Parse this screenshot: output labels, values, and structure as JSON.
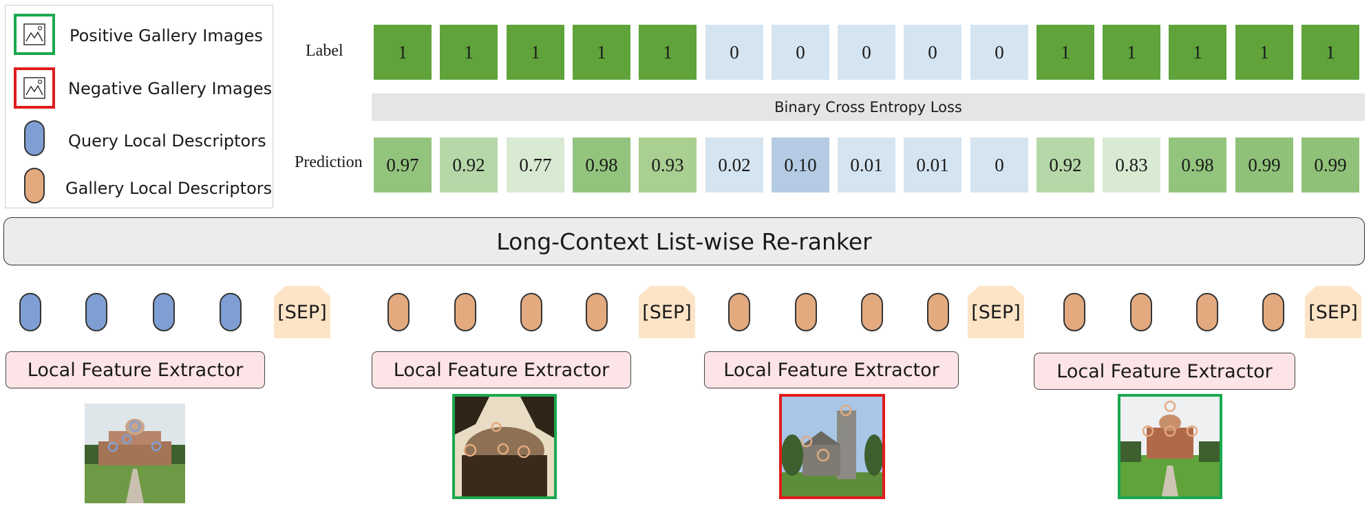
{
  "legend": {
    "positive_label": "Positive Gallery Images",
    "negative_label": "Negative Gallery Images",
    "query_label": "Query Local Descriptors",
    "gallery_label": "Gallery Local Descriptors"
  },
  "colors": {
    "positive_frame": "#1aa84e",
    "negative_frame": "#e01c1c",
    "query_descriptor": "#7f9fd4",
    "gallery_descriptor": "#e3aa80",
    "sep_fill": "#fde4c7",
    "label_positive": "#5fa33a",
    "label_negative": "#d5e4f1"
  },
  "labels_row": {
    "title": "Label",
    "values": [
      "1",
      "1",
      "1",
      "1",
      "1",
      "0",
      "0",
      "0",
      "0",
      "0",
      "1",
      "1",
      "1",
      "1",
      "1"
    ]
  },
  "loss_label": "Binary Cross Entropy Loss",
  "prediction_row": {
    "title": "Prediction",
    "values": [
      "0.97",
      "0.92",
      "0.77",
      "0.98",
      "0.93",
      "0.02",
      "0.10",
      "0.01",
      "0.01",
      "0",
      "0.92",
      "0.83",
      "0.98",
      "0.99",
      "0.99"
    ],
    "fills": [
      "#93c47d",
      "#b6d7a8",
      "#d9ead3",
      "#93c47d",
      "#a9cf91",
      "#d5e4f1",
      "#b4cbe3",
      "#d5e4f1",
      "#d5e4f1",
      "#d5e4f1",
      "#b6d7a8",
      "#d9ead3",
      "#93c47d",
      "#8fc278",
      "#8fc278"
    ]
  },
  "reranker_label": "Long-Context List-wise Re-ranker",
  "sep_label": "[SEP]",
  "extractor_label": "Local Feature Extractor",
  "groups": [
    {
      "descriptor": "query"
    },
    {
      "descriptor": "gallery",
      "frame": "positive"
    },
    {
      "descriptor": "gallery",
      "frame": "negative"
    },
    {
      "descriptor": "gallery",
      "frame": "positive"
    }
  ]
}
